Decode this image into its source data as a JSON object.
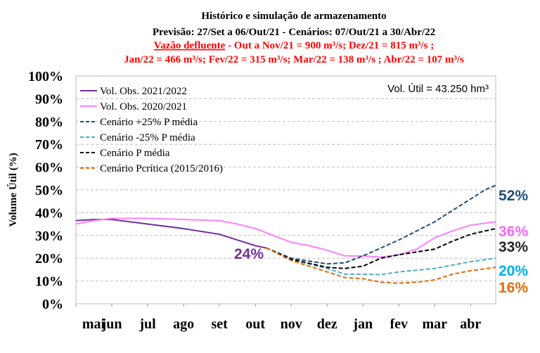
{
  "chart_data": {
    "type": "line",
    "title": "Histórico e simulação de armazenamento",
    "subtitle": "Previsão: 27/Set a 06/Out/21 - Cenários: 07/Out/21 a 30/Abr/22",
    "note_head": "Vazão defluente",
    "note_line1": " - Out a Nov/21 = 900 m³/s; Dez/21 = 815 m³/s ;",
    "note_line2": "Jan/22 = 466 m³/s; Fev/22 = 315 m³/s; Mar/22 = 138 m³/s ; Abr/22 = 107 m³/s",
    "ylabel": "Volume Útil (%)",
    "info": "Vol. Útil = 43.250 hm³",
    "xlim": [
      0,
      11.7
    ],
    "xticks": [
      {
        "value": 0,
        "label": "mai"
      },
      {
        "value": 1,
        "label": "jun"
      },
      {
        "value": 2,
        "label": "jul"
      },
      {
        "value": 3,
        "label": "ago"
      },
      {
        "value": 4,
        "label": "set"
      },
      {
        "value": 5,
        "label": "out"
      },
      {
        "value": 6,
        "label": "nov"
      },
      {
        "value": 7,
        "label": "dez"
      },
      {
        "value": 8,
        "label": "jan"
      },
      {
        "value": 9,
        "label": "fev"
      },
      {
        "value": 10,
        "label": "mar"
      },
      {
        "value": 11,
        "label": "abr"
      }
    ],
    "ylim": [
      0,
      100
    ],
    "yticks": [
      {
        "value": 0,
        "label": "0%"
      },
      {
        "value": 10,
        "label": "10%"
      },
      {
        "value": 20,
        "label": "20%"
      },
      {
        "value": 30,
        "label": "30%"
      },
      {
        "value": 40,
        "label": "40%"
      },
      {
        "value": 50,
        "label": "50%"
      },
      {
        "value": 60,
        "label": "60%"
      },
      {
        "value": 70,
        "label": "70%"
      },
      {
        "value": 80,
        "label": "80%"
      },
      {
        "value": 90,
        "label": "90%"
      },
      {
        "value": 100,
        "label": "100%"
      }
    ],
    "grid": true,
    "legend": "upper left",
    "series": [
      {
        "name": "Vol. Obs. 2021/2022",
        "color": "#7030a0",
        "dash": false,
        "x": [
          0,
          0.5,
          1,
          1.5,
          2,
          3,
          4,
          4.5,
          5,
          5.3
        ],
        "values": [
          36.5,
          37,
          37,
          36,
          35,
          33,
          30.5,
          28,
          25.5,
          24.5
        ]
      },
      {
        "name": "Vol. Obs. 2020/2021",
        "color": "#ff80ff",
        "dash": false,
        "x": [
          0,
          0.5,
          1,
          2,
          3,
          4,
          4.5,
          5,
          5.5,
          6,
          6.5,
          7,
          7.5,
          8,
          8.5,
          9,
          9.5,
          10,
          10.5,
          11,
          11.7
        ],
        "values": [
          35,
          36.5,
          37.5,
          37.5,
          37,
          36.5,
          35,
          33,
          30,
          27,
          25.5,
          23.5,
          21,
          21,
          20.5,
          21.5,
          24,
          29,
          32,
          34.5,
          36
        ]
      },
      {
        "name": "Cenário +25% P média",
        "color": "#1f4e79",
        "dash": true,
        "x": [
          5.3,
          6,
          7,
          7.5,
          8,
          8.5,
          9,
          9.5,
          10,
          10.5,
          11,
          11.4,
          11.7
        ],
        "values": [
          24.5,
          20,
          17.5,
          18,
          21,
          24.5,
          28,
          32,
          36,
          41,
          46,
          50,
          52
        ]
      },
      {
        "name": "Cenário -25% P média",
        "color": "#4bacc6",
        "dash": true,
        "x": [
          5.3,
          6,
          7,
          7.5,
          8,
          8.5,
          9,
          10,
          11,
          11.7
        ],
        "values": [
          24.5,
          19.5,
          15.5,
          13,
          13,
          12.8,
          14,
          15.5,
          18.5,
          20
        ]
      },
      {
        "name": "Cenário P média",
        "color": "#000000",
        "dash": true,
        "x": [
          5.3,
          6,
          7,
          7.5,
          8,
          8.5,
          9,
          10,
          10.5,
          11,
          11.7
        ],
        "values": [
          24.5,
          19.5,
          16,
          15.5,
          16.5,
          20,
          21.5,
          24,
          27.5,
          30.5,
          33
        ]
      },
      {
        "name": "Cenário Pcrítica (2015/2016)",
        "color": "#e46c0a",
        "dash": true,
        "x": [
          5.3,
          6,
          7,
          7.5,
          8,
          8.5,
          9,
          9.5,
          10,
          10.5,
          11,
          11.7
        ],
        "values": [
          24.5,
          19,
          14,
          11.5,
          11,
          9.5,
          9,
          9.5,
          10.5,
          13,
          14.5,
          16
        ]
      }
    ],
    "annotations": [
      {
        "text": "24%",
        "color": "#7030a0"
      },
      {
        "text": "52%",
        "color": "#1f4e79"
      },
      {
        "text": "36%",
        "color": "#ff66ff"
      },
      {
        "text": "33%",
        "color": "#262626"
      },
      {
        "text": "20%",
        "color": "#00b0f0"
      },
      {
        "text": "16%",
        "color": "#e46c0a"
      }
    ]
  }
}
